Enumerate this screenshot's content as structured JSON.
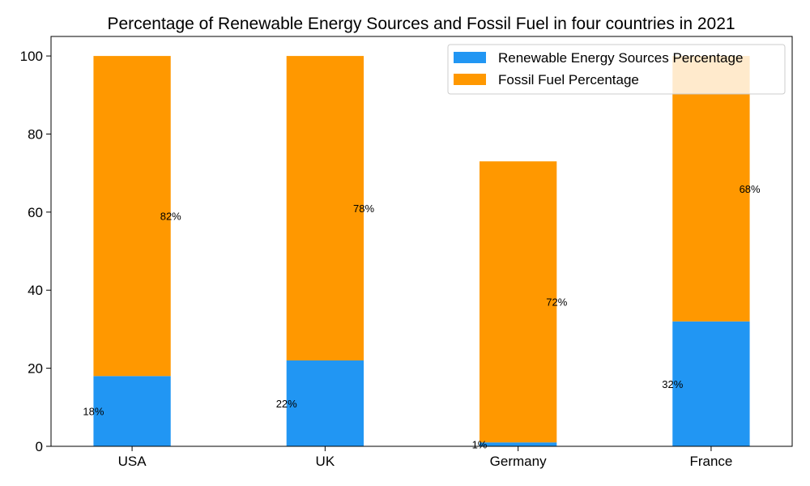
{
  "chart_data": {
    "type": "bar",
    "stacked": true,
    "title": "Percentage of Renewable Energy Sources and Fossil Fuel in four countries in 2021",
    "xlabel": "",
    "ylabel": "",
    "categories": [
      "USA",
      "UK",
      "Germany",
      "France"
    ],
    "series": [
      {
        "name": "Renewable Energy Sources Percentage",
        "color": "#2196f3",
        "values": [
          18,
          22,
          1,
          32
        ],
        "labels": [
          "18%",
          "22%",
          "1%",
          "32%"
        ]
      },
      {
        "name": "Fossil Fuel Percentage",
        "color": "#ff9800",
        "values": [
          82,
          78,
          72,
          68
        ],
        "labels": [
          "82%",
          "78%",
          "72%",
          "68%"
        ]
      }
    ],
    "ylim": [
      0,
      105
    ],
    "yticks": [
      0,
      20,
      40,
      60,
      80,
      100
    ],
    "grid": false,
    "legend": "top-right"
  }
}
